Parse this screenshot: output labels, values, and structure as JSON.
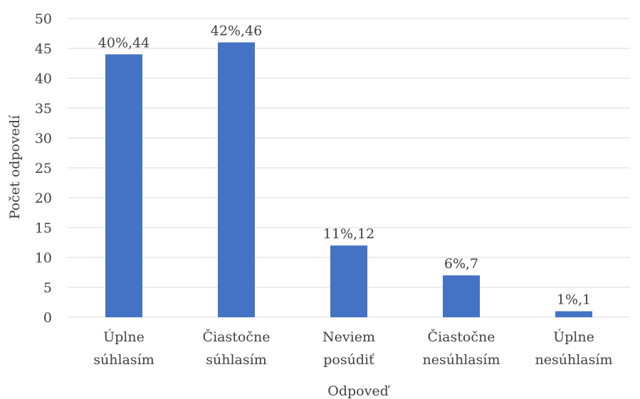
{
  "chart_data": {
    "type": "bar",
    "categories": [
      [
        "Úplne",
        "súhlasím"
      ],
      [
        "Čiastočne",
        "súhlasím"
      ],
      [
        "Neviem",
        "posúdiť"
      ],
      [
        "Čiastočne",
        "nesúhlasím"
      ],
      [
        "Úplne",
        "nesúhlasím"
      ]
    ],
    "values": [
      44,
      46,
      12,
      7,
      1
    ],
    "data_labels": [
      "40%,44",
      "42%,46",
      "11%,12",
      "6%,7",
      "1%,1"
    ],
    "xlabel": "Odpoveď",
    "ylabel": "Počet odpovedí",
    "ylim": [
      0,
      50
    ],
    "yticks": [
      0,
      5,
      10,
      15,
      20,
      25,
      30,
      35,
      40,
      45,
      50
    ],
    "grid": true,
    "legend": "none",
    "colors": {
      "bar": "#4472C4",
      "grid": "#D9D9D9",
      "text": "#404040"
    }
  }
}
